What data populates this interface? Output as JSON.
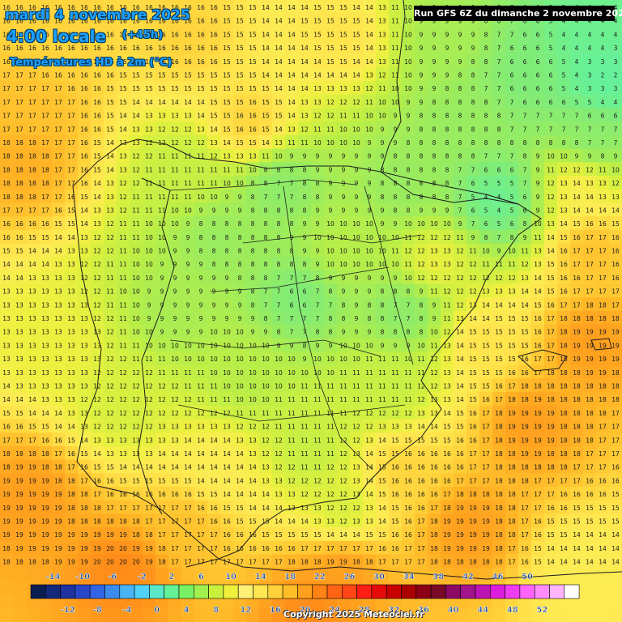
{
  "header": {
    "date": "mardi 4 novembre 2025",
    "time": "4:00 locale",
    "horizon": "(+45h)",
    "parameter": "Températures HD à 2m (°C)"
  },
  "run_info": "Run GFS 6Z du dimanche 2 novembre 2025",
  "copyright": "Copyright 2025 Meteociel.fr",
  "legend": {
    "top_labels": [
      "-14",
      "-10",
      "-6",
      "-2",
      "2",
      "6",
      "10",
      "14",
      "18",
      "22",
      "26",
      "30",
      "34",
      "38",
      "42",
      "46",
      "50"
    ],
    "bottom_labels": [
      "-12",
      "-8",
      "-4",
      "0",
      "4",
      "8",
      "12",
      "16",
      "20",
      "24",
      "28",
      "32",
      "36",
      "40",
      "44",
      "48",
      "52"
    ],
    "colors": [
      "#0a1e50",
      "#14287a",
      "#1e32a0",
      "#2846c8",
      "#3264e6",
      "#3c8cf0",
      "#46b4f5",
      "#50d2fa",
      "#5ae6c8",
      "#64f096",
      "#78f064",
      "#a0f050",
      "#c8f03c",
      "#f0f03c",
      "#fff078",
      "#ffe650",
      "#ffd23c",
      "#ffbe28",
      "#ffa01e",
      "#ff8214",
      "#ff6414",
      "#ff4614",
      "#ff1e14",
      "#e60a0a",
      "#c80000",
      "#aa0000",
      "#8c0014",
      "#780a28",
      "#8c0a64",
      "#a0148c",
      "#be14b4",
      "#dc1edc",
      "#f03cf0",
      "#ff64ff",
      "#ff8cff",
      "#ffb4ff",
      "#ffffff"
    ]
  },
  "temperature_field": {
    "grid_cols": 48,
    "grid_rows": 46,
    "zones": [
      {
        "lat": 0.06,
        "lon": 0.1,
        "value": 16
      },
      {
        "lat": 0.06,
        "lon": 0.3,
        "value": 16
      },
      {
        "lat": 0.06,
        "lon": 0.55,
        "value": 15
      },
      {
        "lat": 0.06,
        "lon": 0.72,
        "value": 9
      },
      {
        "lat": 0.06,
        "lon": 0.95,
        "value": 4
      },
      {
        "lat": 0.12,
        "lon": 0.85,
        "value": 6
      },
      {
        "lat": 0.12,
        "lon": 0.97,
        "value": 2
      },
      {
        "lat": 0.2,
        "lon": 0.75,
        "value": 8
      },
      {
        "lat": 0.22,
        "lon": 0.95,
        "value": 7
      },
      {
        "lat": 0.18,
        "lon": 0.05,
        "value": 17
      },
      {
        "lat": 0.2,
        "lon": 0.4,
        "value": 16
      },
      {
        "lat": 0.28,
        "lon": 0.3,
        "value": 11
      },
      {
        "lat": 0.3,
        "lon": 0.45,
        "value": 7
      },
      {
        "lat": 0.3,
        "lon": 0.65,
        "value": 8
      },
      {
        "lat": 0.32,
        "lon": 0.8,
        "value": 4
      },
      {
        "lat": 0.3,
        "lon": 0.93,
        "value": 14
      },
      {
        "lat": 0.26,
        "lon": 0.04,
        "value": 18
      },
      {
        "lat": 0.38,
        "lon": 0.35,
        "value": 8
      },
      {
        "lat": 0.4,
        "lon": 0.55,
        "value": 10
      },
      {
        "lat": 0.42,
        "lon": 0.7,
        "value": 13
      },
      {
        "lat": 0.4,
        "lon": 0.95,
        "value": 17
      },
      {
        "lat": 0.48,
        "lon": 0.48,
        "value": 6
      },
      {
        "lat": 0.5,
        "lon": 0.65,
        "value": 7
      },
      {
        "lat": 0.5,
        "lon": 0.28,
        "value": 9
      },
      {
        "lat": 0.55,
        "lon": 0.1,
        "value": 13
      },
      {
        "lat": 0.55,
        "lon": 0.78,
        "value": 15
      },
      {
        "lat": 0.55,
        "lon": 0.95,
        "value": 19
      },
      {
        "lat": 0.6,
        "lon": 0.4,
        "value": 10
      },
      {
        "lat": 0.62,
        "lon": 0.62,
        "value": 11
      },
      {
        "lat": 0.65,
        "lon": 0.2,
        "value": 12
      },
      {
        "lat": 0.68,
        "lon": 0.85,
        "value": 19
      },
      {
        "lat": 0.72,
        "lon": 0.5,
        "value": 11
      },
      {
        "lat": 0.75,
        "lon": 0.35,
        "value": 14
      },
      {
        "lat": 0.76,
        "lon": 0.65,
        "value": 16
      },
      {
        "lat": 0.8,
        "lon": 0.05,
        "value": 19
      },
      {
        "lat": 0.82,
        "lon": 0.55,
        "value": 12
      },
      {
        "lat": 0.85,
        "lon": 0.3,
        "value": 17
      },
      {
        "lat": 0.85,
        "lon": 0.75,
        "value": 19
      },
      {
        "lat": 0.92,
        "lon": 0.2,
        "value": 20
      },
      {
        "lat": 0.92,
        "lon": 0.55,
        "value": 19
      },
      {
        "lat": 0.92,
        "lon": 0.93,
        "value": 14
      },
      {
        "lat": 0.98,
        "lon": 0.5,
        "value": 20
      }
    ]
  },
  "color_scale": [
    {
      "t": 1,
      "color": "#60f0a0"
    },
    {
      "t": 4,
      "color": "#6cf090"
    },
    {
      "t": 6,
      "color": "#80ec78"
    },
    {
      "t": 8,
      "color": "#98ec60"
    },
    {
      "t": 10,
      "color": "#b8ee48"
    },
    {
      "t": 12,
      "color": "#d6f040"
    },
    {
      "t": 13,
      "color": "#eef040"
    },
    {
      "t": 14,
      "color": "#fcec54"
    },
    {
      "t": 15,
      "color": "#ffe44c"
    },
    {
      "t": 16,
      "color": "#ffd43c"
    },
    {
      "t": 17,
      "color": "#ffc22e"
    },
    {
      "t": 18,
      "color": "#ffb024"
    },
    {
      "t": 19,
      "color": "#ff9e1e"
    },
    {
      "t": 20,
      "color": "#ff8a18"
    },
    {
      "t": 21,
      "color": "#ff7816"
    }
  ]
}
